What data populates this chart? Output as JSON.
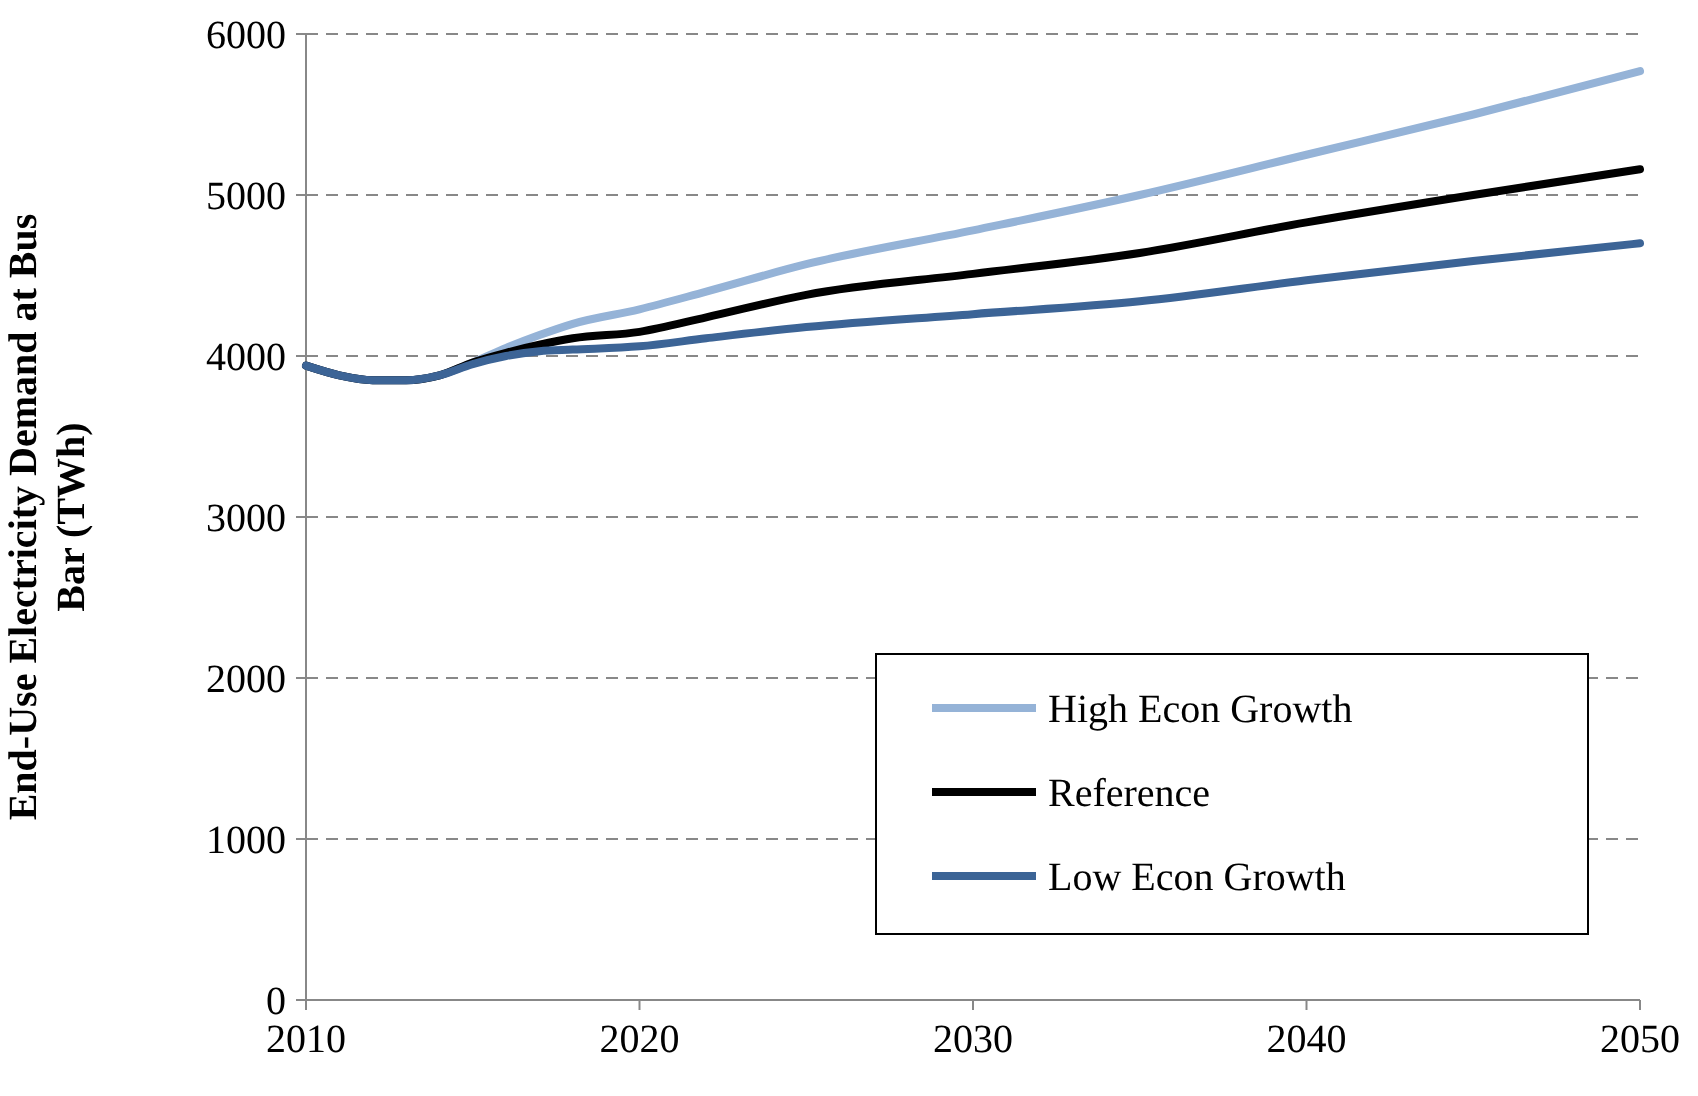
{
  "chart_data": {
    "type": "line",
    "ylabel": "End-Use Electricity Demand at Bus Bar (TWh)",
    "x": [
      2010,
      2011,
      2012,
      2013,
      2014,
      2015,
      2016,
      2017,
      2018,
      2020,
      2022,
      2025,
      2030,
      2035,
      2040,
      2045,
      2050
    ],
    "series": [
      {
        "name": "High Econ Growth",
        "color": "#95b3d7",
        "values": [
          3940,
          3880,
          3850,
          3850,
          3880,
          3960,
          4050,
          4130,
          4200,
          4290,
          4400,
          4570,
          4780,
          5000,
          5250,
          5500,
          5770
        ]
      },
      {
        "name": "Reference",
        "color": "#000000",
        "values": [
          3940,
          3880,
          3850,
          3850,
          3880,
          3960,
          4020,
          4070,
          4110,
          4150,
          4240,
          4380,
          4510,
          4640,
          4830,
          5000,
          5160
        ]
      },
      {
        "name": "Low Econ Growth",
        "color": "#3c6496",
        "values": [
          3940,
          3880,
          3850,
          3850,
          3880,
          3950,
          4000,
          4030,
          4040,
          4060,
          4110,
          4180,
          4260,
          4340,
          4470,
          4590,
          4700
        ]
      }
    ],
    "xlim": [
      2010,
      2050
    ],
    "xticks": [
      2010,
      2020,
      2030,
      2040,
      2050
    ],
    "ylim": [
      0,
      6000
    ],
    "yticks": [
      0,
      1000,
      2000,
      3000,
      4000,
      5000,
      6000
    ],
    "grid": "y",
    "legend": "bottom right",
    "marker": "none",
    "line_style": "solid"
  }
}
